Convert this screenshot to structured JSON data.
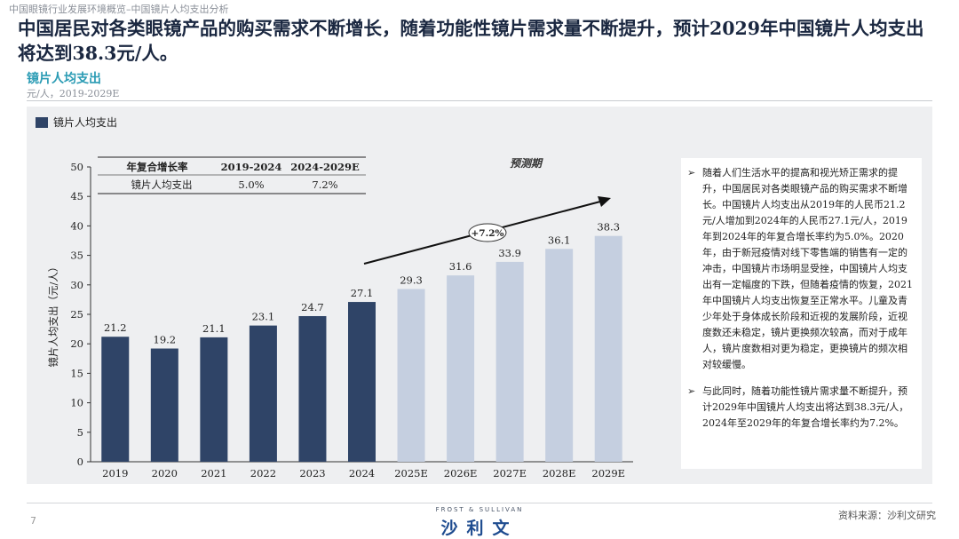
{
  "breadcrumb": "中国眼镜行业发展环境概览–中国镜片人均支出分析",
  "headline": "中国居民对各类眼镜产品的购买需求不断增长，随着功能性镜片需求量不断提升，预计2029年中国镜片人均支出将达到38.3元/人。",
  "chart_title": "镜片人均支出",
  "chart_unit": "元/人，2019-2029E",
  "legend_label": "镜片人均支出",
  "cagr_table": {
    "header": [
      "年复合增长率",
      "2019-2024",
      "2024-2029E"
    ],
    "row": [
      "镜片人均支出",
      "5.0%",
      "7.2%"
    ]
  },
  "forecast_label": "预测期",
  "growth_label": "+7.2%",
  "colors": {
    "actual": "#2f4467",
    "forecast": "#c5cfe0",
    "title_accent": "#2a9bb4"
  },
  "chart_data": {
    "type": "bar",
    "categories": [
      "2019",
      "2020",
      "2021",
      "2022",
      "2023",
      "2024",
      "2025E",
      "2026E",
      "2027E",
      "2028E",
      "2029E"
    ],
    "values": [
      21.2,
      19.2,
      21.1,
      23.1,
      24.7,
      27.1,
      29.3,
      31.6,
      33.9,
      36.1,
      38.3
    ],
    "labels": [
      "21.2",
      "19.2",
      "21.1",
      "23.1",
      "24.7",
      "27.1",
      "29.3",
      "31.6",
      "33.9",
      "36.1",
      "38.3"
    ],
    "forecast_flags": [
      false,
      false,
      false,
      false,
      false,
      false,
      true,
      true,
      true,
      true,
      true
    ],
    "ylabel": "镜片人均支出（元/人）",
    "ylim": [
      0,
      50
    ],
    "yticks": [
      "0",
      "5",
      "10",
      "15",
      "20",
      "25",
      "30",
      "35",
      "40",
      "45",
      "50"
    ],
    "series": [
      {
        "name": "镜片人均支出",
        "values": [
          21.2,
          19.2,
          21.1,
          23.1,
          24.7,
          27.1,
          29.3,
          31.6,
          33.9,
          36.1,
          38.3
        ]
      }
    ]
  },
  "notes": [
    "随着人们生活水平的提高和视光矫正需求的提升，中国居民对各类眼镜产品的购买需求不断增长。中国镜片人均支出从2019年的人民币21.2元/人增加到2024年的人民币27.1元/人，2019年到2024年的年复合增长率约为5.0%。2020年，由于新冠疫情对线下零售端的销售有一定的冲击，中国镜片市场明显受挫，中国镜片人均支出有一定幅度的下跌，但随着疫情的恢复，2021年中国镜片人均支出恢复至正常水平。儿童及青少年处于身体成长阶段和近视的发展阶段，近视度数还未稳定，镜片更换频次较高，而对于成年人，镜片度数相对更为稳定，更换镜片的频次相对较缓慢。",
    "与此同时，随着功能性镜片需求量不断提升，预计2029年中国镜片人均支出将达到38.3元/人，2024年至2029年的年复合增长率约为7.2%。"
  ],
  "page_number": "7",
  "logo_top": "FROST & SULLIVAN",
  "logo_main": "沙利文",
  "source": "资料来源：沙利文研究"
}
